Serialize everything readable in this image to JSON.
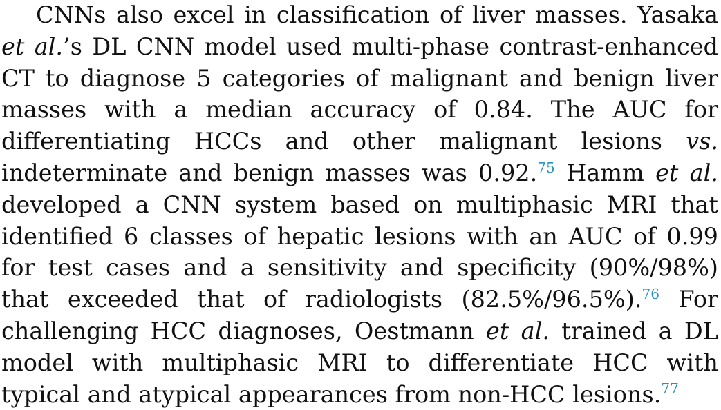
{
  "paragraph": {
    "s1": "CNNs also excel in classification of liver masses. Yasaka ",
    "etal1": "et al.",
    "s2": "’s DL CNN model used multi-phase contrast-enhanced CT to di­agnose 5 categories of malignant and benign liver masses with a median accuracy of 0.84. The AUC for differentiating HCCs and other malignant lesions ",
    "vs": "vs.",
    "s3": " indeterminate and benign masses was 0.92.",
    "ref1": "75",
    "s4": " Hamm ",
    "etal2": "et al.",
    "s5": " developed a CNN system based on multiphasic MRI that identified 6 classes of hepatic lesions with an AUC of 0.99 for test cases and a sensitivity and specificity (90%/98%) that exceeded that of radiologists (82.5%/96.5%).",
    "ref2": "76",
    "s6": " For challenging HCC diagnoses, Oestmann ",
    "etal3": "et al.",
    "s7": " trained a DL model with multiphasic MRI to differentiate HCC with typical and atypical appearances from non-HCC lesions.",
    "ref3": "77"
  },
  "colors": {
    "text": "#111111",
    "reference_link": "#2a8fc4"
  }
}
